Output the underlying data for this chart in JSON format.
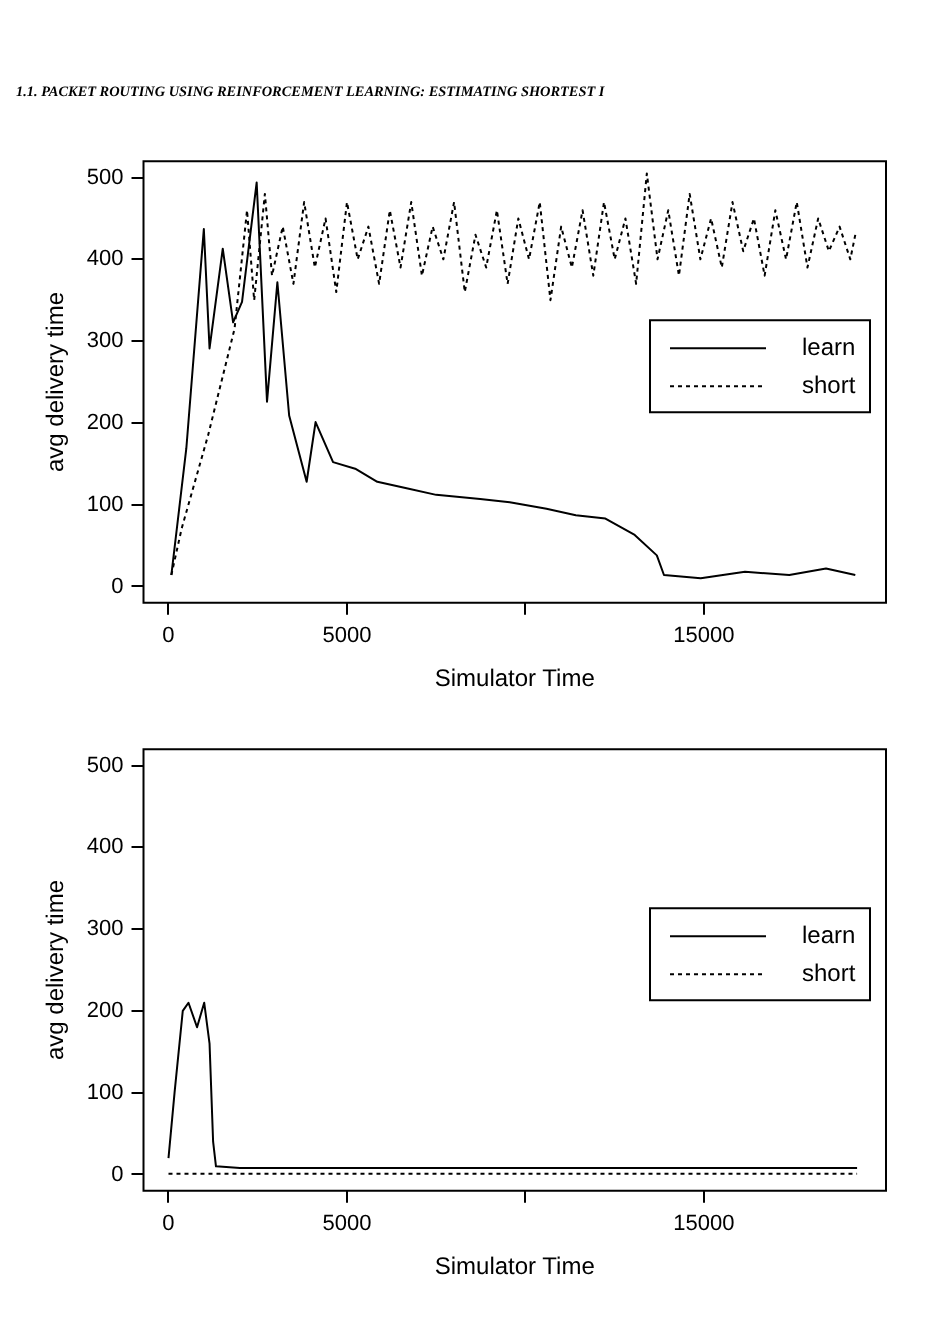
{
  "chart_data": [
    {
      "type": "line",
      "xlabel": "Simulator Time",
      "ylabel": "avg delivery time",
      "xlim": [
        -700,
        20100
      ],
      "ylim": [
        -20,
        520
      ],
      "xticks": [
        0,
        5000,
        {
          "value": 10000,
          "label": null
        },
        15000
      ],
      "yticks": [
        0,
        100,
        200,
        300,
        400,
        500
      ],
      "grid": false,
      "legend": "right",
      "annotations": [
        "1.1.  PACKET ROUTING USING REINFORCEMENT LEARNING: ESTIMATING SHORTEST I"
      ],
      "series": [
        {
          "name": "learn",
          "color": "#000000",
          "line_style": "solid",
          "x": [
            80,
            500,
            990,
            1150,
            1520,
            1810,
            2060,
            2470,
            2760,
            3050,
            3380,
            3870,
            4120,
            4610,
            5230,
            5850,
            6670,
            7500,
            8730,
            9560,
            10590,
            11410,
            12240,
            13060,
            13680,
            13880,
            14910,
            16150,
            17390,
            18420,
            19240
          ],
          "values": [
            14,
            169,
            437,
            291,
            413,
            323,
            348,
            494,
            226,
            372,
            209,
            128,
            201,
            152,
            144,
            128,
            120,
            112,
            107,
            103,
            95,
            87,
            83,
            63,
            38,
            14,
            10,
            18,
            14,
            22,
            14
          ]
        },
        {
          "name": "short",
          "color": "#000000",
          "line_style": "dotted",
          "x": [
            80,
            370,
            1110,
            1850,
            2200,
            2400,
            2700,
            2900,
            3200,
            3500,
            3800,
            4100,
            4400,
            4700,
            5000,
            5300,
            5600,
            5900,
            6200,
            6500,
            6800,
            7100,
            7400,
            7700,
            8000,
            8300,
            8600,
            8900,
            9200,
            9500,
            9800,
            10100,
            10400,
            10700,
            11000,
            11300,
            11600,
            11900,
            12200,
            12500,
            12800,
            13100,
            13400,
            13700,
            14000,
            14300,
            14600,
            14900,
            15200,
            15500,
            15800,
            16100,
            16400,
            16700,
            17000,
            17300,
            17600,
            17900,
            18200,
            18500,
            18800,
            19100,
            19240
          ],
          "values": [
            14,
            71,
            185,
            315,
            460,
            350,
            480,
            380,
            440,
            370,
            470,
            390,
            450,
            360,
            470,
            400,
            440,
            370,
            460,
            390,
            470,
            380,
            440,
            400,
            470,
            360,
            430,
            390,
            460,
            370,
            450,
            400,
            470,
            350,
            440,
            390,
            460,
            380,
            470,
            400,
            450,
            370,
            505,
            400,
            460,
            380,
            480,
            400,
            450,
            390,
            470,
            410,
            450,
            380,
            460,
            400,
            470,
            390,
            450,
            410,
            440,
            400,
            430
          ]
        }
      ]
    },
    {
      "type": "line",
      "xlabel": "Simulator Time",
      "ylabel": "avg delivery time",
      "xlim": [
        -700,
        20100
      ],
      "ylim": [
        -20,
        520
      ],
      "xticks": [
        0,
        5000,
        {
          "value": 10000,
          "label": null
        },
        15000
      ],
      "yticks": [
        0,
        100,
        200,
        300,
        400,
        500
      ],
      "grid": false,
      "legend": "right",
      "series": [
        {
          "name": "learn",
          "color": "#000000",
          "line_style": "solid",
          "x": [
            0,
            170,
            400,
            560,
            800,
            1000,
            1150,
            1250,
            1330,
            2000,
            19290
          ],
          "values": [
            20,
            100,
            200,
            210,
            180,
            210,
            160,
            40,
            10,
            8,
            8
          ]
        },
        {
          "name": "short",
          "color": "#000000",
          "line_style": "dotted",
          "x": [
            0,
            19290
          ],
          "values": [
            1,
            1
          ]
        }
      ]
    }
  ]
}
